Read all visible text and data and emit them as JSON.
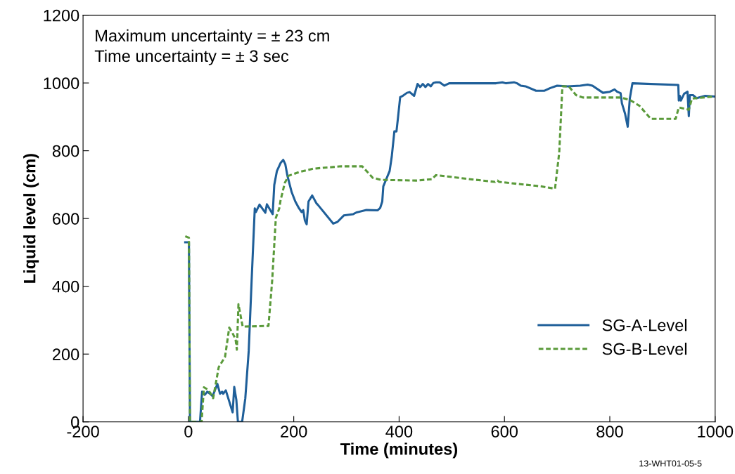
{
  "chart_data": {
    "type": "line",
    "xlabel": "Time (minutes)",
    "ylabel": "Liquid level (cm)",
    "xlim": [
      -200,
      1000
    ],
    "xticks": [
      -200,
      0,
      200,
      400,
      600,
      800,
      1000
    ],
    "ylim": [
      0,
      1200
    ],
    "yticks": [
      0,
      200,
      400,
      600,
      800,
      1000,
      1200
    ],
    "grid": false,
    "legend": "bottom right",
    "marker": "none",
    "annotations": [
      "Maximum uncertainty = ± 23 cm",
      "Time uncertainty = ± 3 sec",
      "13-WHT01-05-5"
    ],
    "series": [
      {
        "name": "SG-A-Level",
        "color": "#1f5f99",
        "line_style": "solid",
        "x": [
          -6,
          1,
          3,
          22,
          26,
          31,
          36,
          41,
          46,
          55,
          60,
          64,
          66,
          71,
          84,
          87,
          91,
          94,
          102,
          108,
          114.5,
          120,
          126,
          128,
          135,
          146,
          149,
          160,
          163,
          168,
          175,
          180,
          184,
          188,
          196,
          203,
          210,
          215,
          218,
          221,
          224.5,
          228,
          235,
          243,
          246,
          275,
          283,
          295,
          313,
          319,
          338,
          359,
          364,
          368,
          370,
          382,
          386,
          391,
          395,
          398,
          402,
          406,
          415,
          420,
          428.5,
          435,
          440,
          445,
          450,
          455,
          460,
          465,
          470,
          477,
          486,
          495,
          584,
          596,
          603,
          618,
          624,
          631,
          640,
          660,
          676,
          687,
          700,
          720,
          744,
          758,
          767,
          787,
          800,
          809,
          814,
          820.5,
          823,
          829,
          834,
          838,
          843,
          930,
          931,
          933,
          935,
          941,
          947.5,
          950,
          952,
          958,
          965,
          981,
          998
        ],
        "values": [
          530,
          530,
          0,
          0,
          89,
          80,
          89,
          83,
          76,
          112,
          83,
          89,
          83,
          93,
          28,
          103,
          65,
          0,
          0,
          69,
          209,
          416,
          630,
          619,
          641,
          617,
          642,
          613,
          699,
          740,
          764,
          773,
          760,
          726,
          678,
          650,
          630,
          619,
          625,
          595,
          583,
          650,
          668,
          645,
          640,
          585,
          590,
          609,
          613,
          618,
          625,
          624,
          631,
          650,
          695,
          740,
          782,
          857,
          857,
          899,
          958,
          961,
          971,
          973,
          962,
          997,
          988,
          997,
          988,
          997,
          990,
          1000,
          1002,
          1002,
          992,
          999,
          999,
          1002,
          999,
          1002,
          999,
          992,
          990,
          977,
          977,
          985,
          992,
          990,
          992,
          995,
          992,
          971,
          974,
          981,
          974,
          970,
          940,
          909,
          871,
          954,
          999,
          994,
          948,
          962,
          948,
          968,
          974,
          902,
          964,
          964,
          955,
          962,
          960
        ]
      },
      {
        "name": "SG-B-Level",
        "color": "#5a9a3a",
        "line_style": "dashed",
        "x": [
          -6,
          1,
          3,
          25,
          29.5,
          34,
          41,
          47,
          57.5,
          69.6,
          77.5,
          83,
          89.5,
          92,
          95,
          103,
          152,
          159,
          166,
          172.5,
          175,
          183,
          190,
          210,
          237,
          290,
          330,
          350,
          366,
          433,
          462,
          470,
          535,
          582,
          587,
          590,
          669,
          696,
          704,
          710,
          722,
          736,
          749,
          820.5,
          838,
          856,
          878,
          925,
          931,
          950,
          956,
          998
        ],
        "values": [
          548,
          543,
          0,
          0,
          102,
          98,
          87,
          70,
          161,
          192,
          278,
          264,
          244,
          213,
          347,
          281,
          283,
          416,
          602,
          630,
          654,
          705,
          726,
          737,
          747,
          754,
          754,
          720,
          714,
          712,
          716,
          728,
          716,
          708,
          712,
          708,
          695,
          688,
          795,
          990,
          990,
          964,
          957,
          957,
          950,
          933,
          894,
          894,
          928,
          921,
          954,
          960
        ]
      }
    ]
  }
}
